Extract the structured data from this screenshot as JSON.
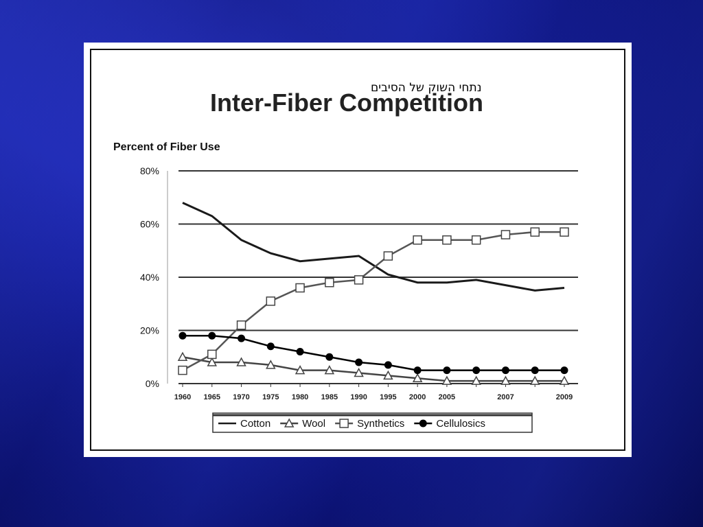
{
  "slide": {
    "overlay_text": "נתחי השוק של הסיבים"
  },
  "chart_data": {
    "type": "line",
    "title": "Inter-Fiber Competition",
    "ylabel": "Percent of Fiber Use",
    "xlabel": "",
    "ylim": [
      0,
      80
    ],
    "yticks": [
      "0%",
      "20%",
      "40%",
      "60%",
      "80%"
    ],
    "ytick_values": [
      0,
      20,
      40,
      60,
      80
    ],
    "categories": [
      "1960",
      "1965",
      "1970",
      "1975",
      "1980",
      "1985",
      "1990",
      "1995",
      "2000",
      "2005",
      "",
      "2007",
      "",
      "2009"
    ],
    "grid": true,
    "legend": "bottom-center",
    "series": [
      {
        "name": "Cotton",
        "marker": "none",
        "color": "#1a1a1a",
        "values": [
          68,
          63,
          54,
          49,
          46,
          47,
          48,
          41,
          38,
          38,
          39,
          37,
          35,
          36
        ]
      },
      {
        "name": "Wool",
        "marker": "triangle-open",
        "color": "#444444",
        "values": [
          10,
          8,
          8,
          7,
          5,
          5,
          4,
          3,
          2,
          1,
          1,
          1,
          1,
          1
        ]
      },
      {
        "name": "Synthetics",
        "marker": "square-open",
        "color": "#555555",
        "values": [
          5,
          11,
          22,
          31,
          36,
          38,
          39,
          48,
          54,
          54,
          54,
          56,
          57,
          57
        ]
      },
      {
        "name": "Cellulosics",
        "marker": "circle-filled",
        "color": "#000000",
        "values": [
          18,
          18,
          17,
          14,
          12,
          10,
          8,
          7,
          5,
          5,
          5,
          5,
          5,
          5
        ]
      }
    ]
  }
}
